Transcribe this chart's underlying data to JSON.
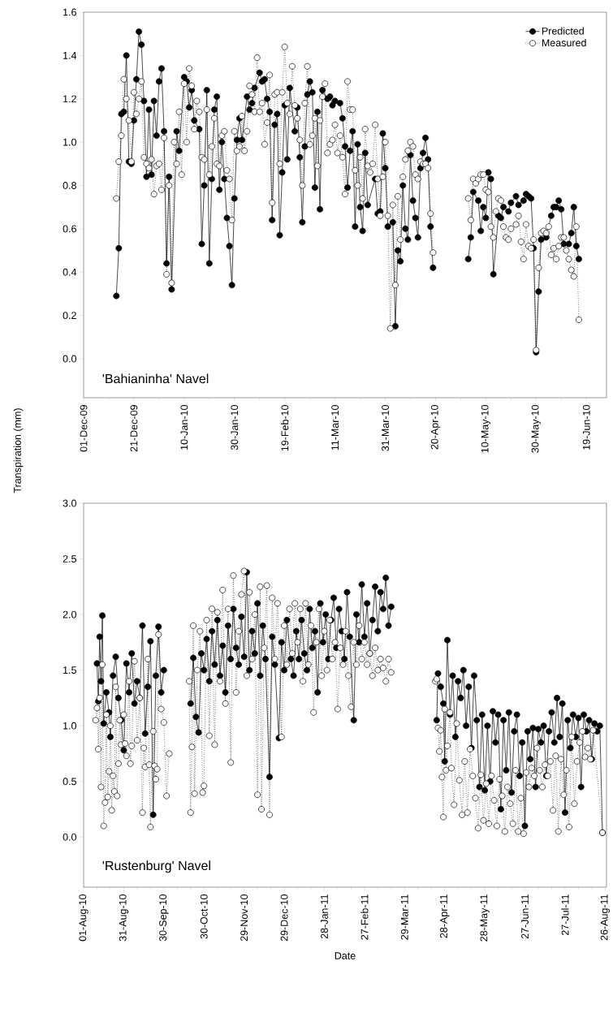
{
  "chart_data": [
    {
      "type": "line",
      "ylabel": "Transpiration (mm)",
      "annotations": [
        "'Bahianinha' Navel"
      ],
      "legend": "top right",
      "marker": "circle",
      "xlim": [
        "2009-12-01",
        "2010-06-27"
      ],
      "ylim": [
        -0.18,
        1.6
      ],
      "xticks": [
        {
          "value": "2009-12-01",
          "label": "01-Dec-09"
        },
        {
          "value": "2009-12-21",
          "label": "21-Dec-09"
        },
        {
          "value": "2010-01-10",
          "label": "10-Jan-10"
        },
        {
          "value": "2010-01-30",
          "label": "30-Jan-10"
        },
        {
          "value": "2010-02-19",
          "label": "19-Feb-10"
        },
        {
          "value": "2010-03-11",
          "label": "11-Mar-10"
        },
        {
          "value": "2010-03-31",
          "label": "31-Mar-10"
        },
        {
          "value": "2010-04-20",
          "label": "20-Apr-10"
        },
        {
          "value": "2010-05-10",
          "label": "10-May-10"
        },
        {
          "value": "2010-05-30",
          "label": "30-May-10"
        },
        {
          "value": "2010-06-19",
          "label": "19-Jun-10"
        }
      ],
      "yticks": [
        {
          "value": 0,
          "label": "0.0"
        },
        {
          "value": 0.2,
          "label": "0.2"
        },
        {
          "value": 0.4,
          "label": "0.4"
        },
        {
          "value": 0.6,
          "label": "0.6"
        },
        {
          "value": 0.8,
          "label": "0.8"
        },
        {
          "value": 1,
          "label": "1.0"
        },
        {
          "value": 1.2,
          "label": "1.2"
        },
        {
          "value": 1.4,
          "label": "1.4"
        },
        {
          "value": 1.6,
          "label": "1.6"
        }
      ],
      "series": [
        {
          "name": "Predicted",
          "color": "#000000",
          "line_style": "solid",
          "x": [
            "2009-12-14",
            "2009-12-15",
            "2009-12-16",
            "2009-12-17",
            "2009-12-18",
            "2009-12-19",
            "2009-12-20",
            "2009-12-21",
            "2009-12-22",
            "2009-12-23",
            "2009-12-24",
            "2009-12-25",
            "2009-12-26",
            "2009-12-27",
            "2009-12-28",
            "2009-12-29",
            "2009-12-30",
            "2009-12-31",
            "2010-01-01",
            "2010-01-02",
            "2010-01-03",
            "2010-01-04",
            "2010-01-05",
            "2010-01-07",
            "2010-01-08",
            "2010-01-10",
            "2010-01-11",
            "2010-01-12",
            "2010-01-13",
            "2010-01-14",
            "2010-01-16",
            "2010-01-17",
            "2010-01-18",
            "2010-01-19",
            "2010-01-20",
            "2010-01-21",
            "2010-01-22",
            "2010-01-23",
            "2010-01-24",
            "2010-01-25",
            "2010-01-26",
            "2010-01-27",
            "2010-01-28",
            "2010-01-29",
            "2010-01-30",
            "2010-01-31",
            "2010-02-01",
            "2010-02-02",
            "2010-02-04",
            "2010-02-05",
            "2010-02-06",
            "2010-02-07",
            "2010-02-09",
            "2010-02-10",
            "2010-02-11",
            "2010-02-12",
            "2010-02-13",
            "2010-02-14",
            "2010-02-15",
            "2010-02-16",
            "2010-02-17",
            "2010-02-18",
            "2010-02-19",
            "2010-02-20",
            "2010-02-21",
            "2010-02-23",
            "2010-02-24",
            "2010-02-25",
            "2010-02-26",
            "2010-02-27",
            "2010-02-28",
            "2010-03-01",
            "2010-03-02",
            "2010-03-03",
            "2010-03-04",
            "2010-03-05",
            "2010-03-06",
            "2010-03-08",
            "2010-03-09",
            "2010-03-10",
            "2010-03-11",
            "2010-03-13",
            "2010-03-14",
            "2010-03-15",
            "2010-03-16",
            "2010-03-17",
            "2010-03-18",
            "2010-03-19",
            "2010-03-20",
            "2010-03-21",
            "2010-03-22",
            "2010-03-23",
            "2010-03-24",
            "2010-03-27",
            "2010-03-28",
            "2010-03-29",
            "2010-03-30",
            "2010-03-31",
            "2010-04-01",
            "2010-04-03",
            "2010-04-04",
            "2010-04-05",
            "2010-04-06",
            "2010-04-07",
            "2010-04-08",
            "2010-04-09",
            "2010-04-10",
            "2010-04-11",
            "2010-04-12",
            "2010-04-13",
            "2010-04-14",
            "2010-04-15",
            "2010-04-16",
            "2010-04-17",
            "2010-04-18",
            "2010-04-19",
            "2010-04-26",
            "2010-05-03",
            "2010-05-04",
            "2010-05-05",
            "2010-05-07",
            "2010-05-08",
            "2010-05-09",
            "2010-05-10",
            "2010-05-11",
            "2010-05-12",
            "2010-05-13",
            "2010-05-15",
            "2010-05-16",
            "2010-05-17",
            "2010-05-19",
            "2010-05-20",
            "2010-05-22",
            "2010-05-23",
            "2010-05-25",
            "2010-05-26",
            "2010-05-27",
            "2010-05-28",
            "2010-05-29",
            "2010-05-30",
            "2010-05-31",
            "2010-06-01",
            "2010-06-03",
            "2010-06-05",
            "2010-06-06",
            "2010-06-07",
            "2010-06-08",
            "2010-06-09",
            "2010-06-10",
            "2010-06-12",
            "2010-06-13",
            "2010-06-14",
            "2010-06-15",
            "2010-06-16"
          ],
          "values": [
            0.29,
            0.51,
            1.13,
            1.14,
            1.4,
            0.91,
            0.9,
            1.1,
            1.29,
            1.51,
            1.45,
            1.19,
            0.84,
            1.15,
            0.85,
            1.19,
            1.03,
            1.28,
            1.34,
            1.05,
            0.44,
            0.84,
            0.32,
            1.05,
            0.96,
            1.3,
            1.28,
            1.16,
            1.24,
            1.1,
            1.06,
            0.53,
            0.8,
            1.24,
            0.44,
            0.83,
            1.15,
            1.21,
            0.78,
            1.0,
            0.83,
            0.65,
            0.52,
            0.34,
            0.74,
            1.01,
            1.11,
            1.01,
            1.21,
            1.15,
            1.18,
            1.25,
            1.32,
            1.28,
            1.29,
            1.2,
            1.14,
            0.64,
            1.08,
            1.13,
            0.57,
            0.86,
            1.17,
            0.92,
            1.25,
            1.05,
            1.16,
            0.93,
            0.63,
            0.98,
            1.22,
            1.28,
            1.23,
            0.79,
            1.14,
            0.69,
            1.24,
            1.2,
            1.21,
            1.17,
            1.19,
            1.18,
            1.11,
            0.98,
            0.79,
            0.96,
            1.05,
            0.61,
            0.99,
            0.7,
            0.59,
            0.95,
            0.71,
            0.83,
            0.67,
            0.68,
            1.04,
            0.88,
            0.61,
            0.63,
            0.15,
            0.5,
            0.45,
            0.8,
            0.6,
            0.55,
            0.94,
            0.73,
            0.65,
            0.56,
            0.88,
            0.95,
            1.02,
            0.92,
            0.61,
            0.42,
            null,
            0.46,
            0.56,
            0.77,
            0.73,
            0.59,
            0.7,
            0.65,
            0.86,
            0.83,
            0.39,
            0.66,
            0.65,
            0.7,
            0.68,
            0.72,
            0.75,
            0.71,
            0.73,
            0.76,
            0.75,
            0.74,
            0.51,
            0.03,
            0.31,
            0.55,
            0.56,
            0.66,
            0.7,
            0.7,
            0.73,
            0.69,
            0.53,
            0.53,
            0.58,
            0.7,
            0.52,
            0.46
          ]
        },
        {
          "name": "Measured",
          "color": "#ffffff",
          "line_style": "dotted",
          "x": [
            "2009-12-14",
            "2009-12-15",
            "2009-12-16",
            "2009-12-17",
            "2009-12-18",
            "2009-12-19",
            "2009-12-20",
            "2009-12-21",
            "2009-12-22",
            "2009-12-23",
            "2009-12-24",
            "2009-12-25",
            "2009-12-26",
            "2009-12-27",
            "2009-12-28",
            "2009-12-29",
            "2009-12-30",
            "2009-12-31",
            "2010-01-01",
            "2010-01-02",
            "2010-01-03",
            "2010-01-04",
            "2010-01-05",
            "2010-01-06",
            "2010-01-07",
            "2010-01-08",
            "2010-01-09",
            "2010-01-10",
            "2010-01-11",
            "2010-01-12",
            "2010-01-13",
            "2010-01-14",
            "2010-01-15",
            "2010-01-16",
            "2010-01-17",
            "2010-01-18",
            "2010-01-19",
            "2010-01-20",
            "2010-01-21",
            "2010-01-22",
            "2010-01-23",
            "2010-01-24",
            "2010-01-25",
            "2010-01-26",
            "2010-01-27",
            "2010-01-28",
            "2010-01-29",
            "2010-01-30",
            "2010-01-31",
            "2010-02-01",
            "2010-02-02",
            "2010-02-03",
            "2010-02-04",
            "2010-02-05",
            "2010-02-06",
            "2010-02-07",
            "2010-02-08",
            "2010-02-09",
            "2010-02-10",
            "2010-02-11",
            "2010-02-12",
            "2010-02-13",
            "2010-02-14",
            "2010-02-15",
            "2010-02-16",
            "2010-02-17",
            "2010-02-18",
            "2010-02-19",
            "2010-02-20",
            "2010-02-21",
            "2010-02-22",
            "2010-02-23",
            "2010-02-24",
            "2010-02-25",
            "2010-02-26",
            "2010-02-27",
            "2010-02-28",
            "2010-03-01",
            "2010-03-02",
            "2010-03-03",
            "2010-03-04",
            "2010-03-05",
            "2010-03-06",
            "2010-03-07",
            "2010-03-08",
            "2010-03-09",
            "2010-03-10",
            "2010-03-11",
            "2010-03-12",
            "2010-03-13",
            "2010-03-14",
            "2010-03-15",
            "2010-03-16",
            "2010-03-17",
            "2010-03-18",
            "2010-03-19",
            "2010-03-20",
            "2010-03-21",
            "2010-03-22",
            "2010-03-23",
            "2010-03-24",
            "2010-03-25",
            "2010-03-26",
            "2010-03-27",
            "2010-03-28",
            "2010-03-29",
            "2010-03-30",
            "2010-03-31",
            "2010-04-01",
            "2010-04-02",
            "2010-04-03",
            "2010-04-04",
            "2010-04-05",
            "2010-04-06",
            "2010-04-07",
            "2010-04-08",
            "2010-04-09",
            "2010-04-10",
            "2010-04-11",
            "2010-04-12",
            "2010-04-13",
            "2010-04-14",
            "2010-04-15",
            "2010-04-16",
            "2010-04-17",
            "2010-04-18",
            "2010-04-19",
            "2010-04-26",
            "2010-05-03",
            "2010-05-04",
            "2010-05-05",
            "2010-05-06",
            "2010-05-07",
            "2010-05-08",
            "2010-05-09",
            "2010-05-10",
            "2010-05-11",
            "2010-05-12",
            "2010-05-13",
            "2010-05-14",
            "2010-05-15",
            "2010-05-16",
            "2010-05-17",
            "2010-05-18",
            "2010-05-19",
            "2010-05-20",
            "2010-05-22",
            "2010-05-23",
            "2010-05-24",
            "2010-05-25",
            "2010-05-26",
            "2010-05-27",
            "2010-05-28",
            "2010-05-29",
            "2010-05-30",
            "2010-05-31",
            "2010-06-01",
            "2010-06-02",
            "2010-06-03",
            "2010-06-04",
            "2010-06-05",
            "2010-06-06",
            "2010-06-07",
            "2010-06-08",
            "2010-06-09",
            "2010-06-10",
            "2010-06-11",
            "2010-06-12",
            "2010-06-13",
            "2010-06-14",
            "2010-06-15",
            "2010-06-16"
          ],
          "values": [
            0.74,
            0.91,
            1.03,
            1.29,
            1.2,
            1.1,
            0.91,
            1.23,
            1.13,
            1.2,
            1.28,
            0.93,
            0.9,
            0.88,
            0.92,
            0.76,
            0.89,
            0.9,
            0.78,
            1.02,
            0.39,
            0.8,
            0.35,
            1.0,
            0.9,
            1.14,
            0.85,
            1.27,
            1.0,
            1.34,
            1.26,
            1.06,
            1.19,
            1.14,
            0.93,
            0.92,
            1.15,
            0.85,
            0.98,
            1.11,
            0.9,
            0.89,
            1.03,
            1.05,
            0.87,
            0.83,
            0.64,
            1.05,
            0.96,
            0.98,
            1.12,
            0.96,
            1.05,
            1.26,
            1.22,
            1.14,
            1.39,
            1.14,
            1.18,
            0.99,
            1.09,
            1.31,
            0.72,
            1.22,
            1.23,
            0.9,
            1.23,
            1.44,
            1.18,
            1.13,
            1.35,
            1.17,
            1.11,
            1.01,
            0.8,
            1.18,
            1.35,
            0.99,
            1.03,
            1.11,
            0.89,
            1.1,
            1.21,
            1.27,
            0.95,
            0.99,
            1.01,
            1.08,
            0.95,
            1.03,
            0.93,
            0.76,
            1.28,
            1.15,
            1.15,
            0.87,
            0.8,
            0.93,
            0.74,
            1.06,
            0.89,
            0.86,
            0.9,
            1.08,
            0.83,
            0.66,
            0.84,
            1.0,
            0.66,
            0.14,
            0.71,
            0.34,
            0.75,
            0.55,
            0.84,
            0.92,
            0.96,
            1.0,
            0.98,
            0.85,
            0.83,
            0.91,
            0.9,
            0.9,
            0.88,
            0.67,
            0.49,
            null,
            0.74,
            0.64,
            0.83,
            0.81,
            0.83,
            0.85,
            0.85,
            0.78,
            0.77,
            0.61,
            0.56,
            0.68,
            0.74,
            0.73,
            0.61,
            0.56,
            0.55,
            0.6,
            0.62,
            0.66,
            0.54,
            0.46,
            0.62,
            0.52,
            0.51,
            0.55,
            0.04,
            0.42,
            0.58,
            0.59,
            0.58,
            0.61,
            0.48,
            0.51,
            0.46,
            0.52,
            0.56,
            0.56,
            0.5,
            0.46,
            0.41,
            0.38,
            0.61,
            0.18
          ]
        }
      ]
    },
    {
      "type": "line",
      "xlabel": "Date",
      "annotations": [
        "'Rustenburg' Navel"
      ],
      "marker": "circle",
      "xlim": [
        "2010-08-01",
        "2011-08-27"
      ],
      "ylim": [
        -0.45,
        3.0
      ],
      "xticks": [
        {
          "value": "2010-08-01",
          "label": "01-Aug-10"
        },
        {
          "value": "2010-08-31",
          "label": "31-Aug-10"
        },
        {
          "value": "2010-09-30",
          "label": "30-Sep-10"
        },
        {
          "value": "2010-10-30",
          "label": "30-Oct-10"
        },
        {
          "value": "2010-11-29",
          "label": "29-Nov-10"
        },
        {
          "value": "2010-12-29",
          "label": "29-Dec-10"
        },
        {
          "value": "2011-01-28",
          "label": "28-Jan-11"
        },
        {
          "value": "2011-02-27",
          "label": "27-Feb-11"
        },
        {
          "value": "2011-03-29",
          "label": "29-Mar-11"
        },
        {
          "value": "2011-04-28",
          "label": "28-Apr-11"
        },
        {
          "value": "2011-05-28",
          "label": "28-May-11"
        },
        {
          "value": "2011-06-27",
          "label": "27-Jun-11"
        },
        {
          "value": "2011-07-27",
          "label": "27-Jul-11"
        },
        {
          "value": "2011-08-26",
          "label": "26-Aug-11"
        }
      ],
      "yticks": [
        {
          "value": 0,
          "label": "0.0"
        },
        {
          "value": 0.5,
          "label": "0.5"
        },
        {
          "value": 1,
          "label": "1.0"
        },
        {
          "value": 1.5,
          "label": "1.5"
        },
        {
          "value": 2,
          "label": "2.0"
        },
        {
          "value": 2.5,
          "label": "2.5"
        },
        {
          "value": 3,
          "label": "3.0"
        }
      ],
      "series": [
        {
          "color": "#000000",
          "line_style": "solid",
          "x": [
            "2010-08-11",
            "2010-08-12",
            "2010-08-13",
            "2010-08-14",
            "2010-08-15",
            "2010-08-16",
            "2010-08-18",
            "2010-08-20",
            "2010-08-21",
            "2010-08-23",
            "2010-08-25",
            "2010-08-27",
            "2010-08-29",
            "2010-08-31",
            "2010-09-02",
            "2010-09-04",
            "2010-09-06",
            "2010-09-08",
            "2010-09-10",
            "2010-09-12",
            "2010-09-14",
            "2010-09-16",
            "2010-09-18",
            "2010-09-20",
            "2010-09-22",
            "2010-09-24",
            "2010-09-26",
            "2010-09-28",
            "2010-09-30",
            "2010-10-15",
            "2010-10-20",
            "2010-10-22",
            "2010-10-24",
            "2010-10-26",
            "2010-10-28",
            "2010-10-30",
            "2010-11-01",
            "2010-11-03",
            "2010-11-05",
            "2010-11-07",
            "2010-11-09",
            "2010-11-11",
            "2010-11-13",
            "2010-11-15",
            "2010-11-17",
            "2010-11-19",
            "2010-11-21",
            "2010-11-23",
            "2010-11-25",
            "2010-11-27",
            "2010-11-29",
            "2010-12-01",
            "2010-12-03",
            "2010-12-05",
            "2010-12-07",
            "2010-12-09",
            "2010-12-11",
            "2010-12-13",
            "2010-12-15",
            "2010-12-18",
            "2010-12-20",
            "2010-12-22",
            "2010-12-25",
            "2010-12-27",
            "2010-12-29",
            "2010-12-31",
            "2011-01-03",
            "2011-01-05",
            "2011-01-07",
            "2011-01-09",
            "2011-01-11",
            "2011-01-13",
            "2011-01-15",
            "2011-01-17",
            "2011-01-19",
            "2011-01-21",
            "2011-01-23",
            "2011-01-25",
            "2011-01-27",
            "2011-01-29",
            "2011-01-31",
            "2011-02-02",
            "2011-02-04",
            "2011-02-06",
            "2011-02-08",
            "2011-02-10",
            "2011-02-12",
            "2011-02-14",
            "2011-02-16",
            "2011-02-19",
            "2011-02-21",
            "2011-02-23",
            "2011-02-25",
            "2011-02-27",
            "2011-03-01",
            "2011-03-03",
            "2011-03-05",
            "2011-03-07",
            "2011-03-09",
            "2011-03-11",
            "2011-03-13",
            "2011-03-15",
            "2011-03-17",
            "2011-03-19",
            "2011-04-01",
            "2011-04-22",
            "2011-04-23",
            "2011-04-25",
            "2011-04-27",
            "2011-04-28",
            "2011-04-30",
            "2011-05-02",
            "2011-05-04",
            "2011-05-06",
            "2011-05-08",
            "2011-05-10",
            "2011-05-12",
            "2011-05-14",
            "2011-05-16",
            "2011-05-18",
            "2011-05-20",
            "2011-05-22",
            "2011-05-24",
            "2011-05-26",
            "2011-05-28",
            "2011-05-30",
            "2011-06-01",
            "2011-06-03",
            "2011-06-05",
            "2011-06-07",
            "2011-06-09",
            "2011-06-11",
            "2011-06-13",
            "2011-06-15",
            "2011-06-17",
            "2011-06-19",
            "2011-06-21",
            "2011-06-23",
            "2011-06-25",
            "2011-06-27",
            "2011-06-29",
            "2011-07-01",
            "2011-07-03",
            "2011-07-05",
            "2011-07-07",
            "2011-07-09",
            "2011-07-11",
            "2011-07-13",
            "2011-07-15",
            "2011-07-17",
            "2011-07-19",
            "2011-07-21",
            "2011-07-23",
            "2011-07-25",
            "2011-07-27",
            "2011-07-29",
            "2011-07-31",
            "2011-08-02",
            "2011-08-04",
            "2011-08-06",
            "2011-08-08",
            "2011-08-10",
            "2011-08-12",
            "2011-08-14",
            "2011-08-16",
            "2011-08-18",
            "2011-08-20",
            "2011-08-22",
            "2011-08-24"
          ],
          "values": [
            1.56,
            1.22,
            1.8,
            1.4,
            1.99,
            1.02,
            1.3,
            1.12,
            0.9,
            1.45,
            1.62,
            1.25,
            1.05,
            0.78,
            1.56,
            1.3,
            1.65,
            1.2,
            1.4,
            1.25,
            1.9,
            0.93,
            1.35,
            1.76,
            0.2,
            1.45,
            1.89,
            1.3,
            1.5,
            null,
            1.2,
            1.61,
            1.08,
            0.94,
            1.65,
            1.5,
            1.78,
            1.4,
            1.85,
            1.55,
            1.95,
            1.45,
            1.72,
            1.3,
            1.9,
            1.6,
            2.05,
            1.7,
            1.55,
            1.98,
            1.62,
            2.38,
            1.5,
            1.85,
            1.65,
            2.1,
            1.45,
            1.9,
            1.6,
            0.54,
            1.8,
            1.55,
            0.89,
            1.75,
            1.5,
            1.95,
            1.6,
            1.45,
            1.85,
            1.6,
            1.95,
            1.65,
            1.5,
            2.05,
            1.7,
            1.85,
            1.3,
            2.1,
            1.75,
            2.0,
            1.6,
            1.95,
            2.15,
            1.7,
            2.05,
            1.85,
            1.6,
            2.2,
            1.8,
            1.05,
            2.0,
            1.75,
            2.27,
            1.8,
            2.1,
            1.65,
            1.95,
            2.25,
            1.85,
            2.2,
            2.05,
            2.33,
            1.9,
            2.07,
            null,
            1.05,
            1.47,
            1.35,
            1.2,
            0.68,
            1.77,
            1.1,
            1.45,
            0.9,
            1.4,
            1.25,
            1.5,
            1.0,
            1.35,
            0.8,
            1.45,
            1.05,
            0.45,
            1.1,
            0.42,
            1.0,
            0.5,
            1.13,
            0.85,
            1.1,
            0.25,
            1.05,
            0.6,
            1.12,
            0.4,
            0.95,
            1.1,
            0.55,
            0.85,
            0.1,
            0.95,
            0.7,
            0.98,
            0.45,
            0.97,
            0.85,
            1.0,
            0.55,
            0.95,
            1.12,
            0.85,
            1.25,
            0.9,
            1.2,
            0.22,
            1.05,
            0.8,
            1.1,
            0.9,
            1.07,
            0.45,
            1.1,
            0.95,
            1.05,
            0.7,
            1.02,
            0.95,
            1.0,
            0.04
          ]
        },
        {
          "color": "#ffffff",
          "line_style": "dotted",
          "x": [
            "2010-08-10",
            "2010-08-11",
            "2010-08-12",
            "2010-08-13",
            "2010-08-14",
            "2010-08-15",
            "2010-08-16",
            "2010-08-17",
            "2010-08-18",
            "2010-08-19",
            "2010-08-20",
            "2010-08-21",
            "2010-08-22",
            "2010-08-23",
            "2010-08-24",
            "2010-08-25",
            "2010-08-26",
            "2010-08-27",
            "2010-08-28",
            "2010-08-29",
            "2010-08-31",
            "2010-09-01",
            "2010-09-02",
            "2010-09-04",
            "2010-09-05",
            "2010-09-06",
            "2010-09-08",
            "2010-09-10",
            "2010-09-12",
            "2010-09-14",
            "2010-09-15",
            "2010-09-16",
            "2010-09-18",
            "2010-09-19",
            "2010-09-20",
            "2010-09-22",
            "2010-09-23",
            "2010-09-24",
            "2010-09-25",
            "2010-09-26",
            "2010-09-28",
            "2010-09-30",
            "2010-10-02",
            "2010-10-04",
            "2010-10-12",
            "2010-10-19",
            "2010-10-20",
            "2010-10-21",
            "2010-10-22",
            "2010-10-23",
            "2010-10-25",
            "2010-10-27",
            "2010-10-29",
            "2010-10-30",
            "2010-11-01",
            "2010-11-03",
            "2010-11-05",
            "2010-11-07",
            "2010-11-09",
            "2010-11-11",
            "2010-11-13",
            "2010-11-15",
            "2010-11-17",
            "2010-11-19",
            "2010-11-21",
            "2010-11-23",
            "2010-11-25",
            "2010-11-27",
            "2010-11-29",
            "2010-12-01",
            "2010-12-03",
            "2010-12-05",
            "2010-12-07",
            "2010-12-09",
            "2010-12-11",
            "2010-12-12",
            "2010-12-14",
            "2010-12-16",
            "2010-12-18",
            "2010-12-20",
            "2010-12-22",
            "2010-12-24",
            "2010-12-27",
            "2010-12-29",
            "2010-12-31",
            "2011-01-02",
            "2011-01-04",
            "2011-01-06",
            "2011-01-08",
            "2011-01-10",
            "2011-01-12",
            "2011-01-14",
            "2011-01-16",
            "2011-01-18",
            "2011-01-20",
            "2011-01-22",
            "2011-01-24",
            "2011-01-26",
            "2011-01-28",
            "2011-01-30",
            "2011-02-01",
            "2011-02-03",
            "2011-02-05",
            "2011-02-07",
            "2011-02-09",
            "2011-02-11",
            "2011-02-13",
            "2011-02-15",
            "2011-02-17",
            "2011-02-19",
            "2011-02-21",
            "2011-02-23",
            "2011-02-25",
            "2011-02-27",
            "2011-03-01",
            "2011-03-03",
            "2011-03-05",
            "2011-03-07",
            "2011-03-09",
            "2011-03-11",
            "2011-03-13",
            "2011-03-15",
            "2011-03-17",
            "2011-03-19",
            "2011-04-01",
            "2011-04-21",
            "2011-04-22",
            "2011-04-23",
            "2011-04-24",
            "2011-04-25",
            "2011-04-26",
            "2011-04-27",
            "2011-04-28",
            "2011-04-29",
            "2011-04-30",
            "2011-05-02",
            "2011-05-03",
            "2011-05-05",
            "2011-05-07",
            "2011-05-09",
            "2011-05-11",
            "2011-05-13",
            "2011-05-15",
            "2011-05-17",
            "2011-05-19",
            "2011-05-21",
            "2011-05-23",
            "2011-05-25",
            "2011-05-27",
            "2011-05-29",
            "2011-05-31",
            "2011-06-02",
            "2011-06-04",
            "2011-06-06",
            "2011-06-08",
            "2011-06-10",
            "2011-06-12",
            "2011-06-14",
            "2011-06-16",
            "2011-06-18",
            "2011-06-20",
            "2011-06-22",
            "2011-06-24",
            "2011-06-26",
            "2011-06-28",
            "2011-06-30",
            "2011-07-02",
            "2011-07-04",
            "2011-07-06",
            "2011-07-08",
            "2011-07-10",
            "2011-07-12",
            "2011-07-14",
            "2011-07-16",
            "2011-07-18",
            "2011-07-20",
            "2011-07-22",
            "2011-07-24",
            "2011-07-26",
            "2011-07-28",
            "2011-07-30",
            "2011-08-01",
            "2011-08-03",
            "2011-08-05",
            "2011-08-07",
            "2011-08-09",
            "2011-08-11",
            "2011-08-13",
            "2011-08-15",
            "2011-08-17",
            "2011-08-24"
          ],
          "values": [
            1.05,
            1.16,
            0.79,
            1.25,
            0.45,
            1.55,
            0.1,
            0.31,
            1.1,
            0.36,
            0.59,
            1.0,
            0.24,
            0.55,
            0.41,
            1.35,
            0.37,
            0.66,
            1.05,
            0.83,
            1.1,
            0.84,
            0.73,
            1.4,
            0.66,
            0.82,
            1.58,
            0.87,
            1.25,
            0.22,
            0.8,
            0.63,
            1.6,
            0.65,
            0.09,
            0.95,
            0.64,
            0.52,
            0.61,
            1.82,
            1.15,
            1.03,
            0.37,
            0.75,
            null,
            1.4,
            0.22,
            0.81,
            1.9,
            0.39,
            1.5,
            1.85,
            0.4,
            0.46,
            1.95,
            0.91,
            2.05,
            0.83,
            2.02,
            1.4,
            2.22,
            1.2,
            2.05,
            0.67,
            2.35,
            1.3,
            1.85,
            2.18,
            2.39,
            1.45,
            2.2,
            1.6,
            2.0,
            0.38,
            2.25,
            0.25,
            1.7,
            2.26,
            0.2,
            2.15,
            1.6,
            2.1,
            0.9,
            1.9,
            1.55,
            2.05,
            1.65,
            2.1,
            1.75,
            2.05,
            1.4,
            2.1,
            1.55,
            1.9,
            1.12,
            1.75,
            2.05,
            1.45,
            1.85,
            1.5,
            1.95,
            1.6,
            1.75,
            1.15,
            1.7,
            1.55,
            1.85,
            1.45,
            1.17,
            1.75,
            1.55,
            1.9,
            1.6,
            1.75,
            1.55,
            1.65,
            1.45,
            1.7,
            1.5,
            1.6,
            1.52,
            1.4,
            1.6,
            1.48,
            null,
            1.4,
            1.42,
            0.98,
            0.77,
            0.96,
            0.54,
            0.18,
            1.15,
            0.6,
            0.82,
            1.12,
            0.62,
            0.29,
            1.02,
            0.51,
            0.2,
            0.68,
            0.22,
            0.79,
            0.55,
            0.35,
            0.08,
            0.56,
            0.15,
            0.48,
            0.12,
            0.55,
            0.33,
            0.1,
            0.52,
            0.37,
            0.05,
            0.45,
            0.3,
            0.12,
            0.6,
            0.05,
            0.35,
            0.03,
            0.58,
            0.45,
            0.62,
            0.55,
            0.8,
            0.6,
            0.45,
            0.65,
            0.55,
            0.68,
            0.24,
            0.73,
            0.05,
            0.7,
            0.38,
            0.6,
            0.09,
            0.9,
            0.3,
            0.68,
            0.85,
            0.95,
            0.72,
            0.8,
            0.7,
            0.96,
            0.04
          ]
        }
      ]
    }
  ]
}
